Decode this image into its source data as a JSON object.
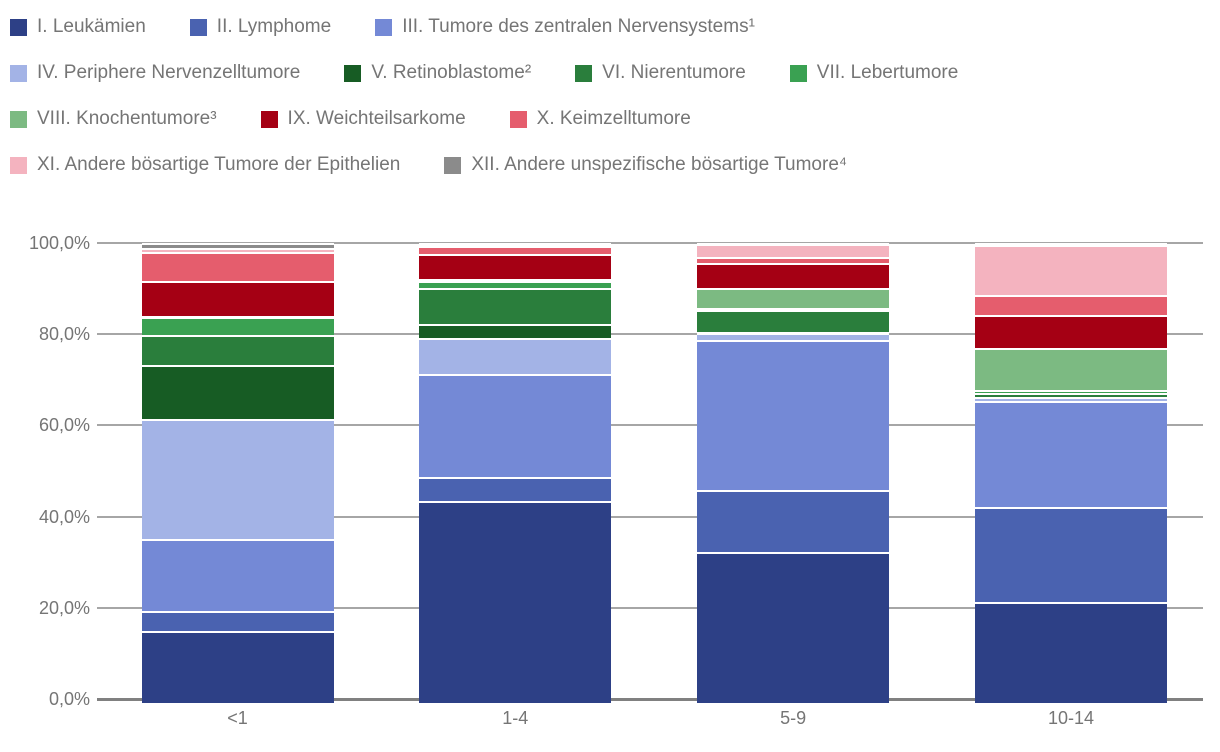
{
  "chart_data": {
    "type": "bar",
    "variant": "stacked-100-percent-column",
    "title": "",
    "xlabel": "",
    "ylabel": "",
    "categories": [
      "<1",
      "1-4",
      "5-9",
      "10-14"
    ],
    "series": [
      {
        "name": "I. Leukämien",
        "color": "#2d4086",
        "values": [
          15.0,
          43.5,
          32.2,
          21.2
        ]
      },
      {
        "name": "II. Lymphome",
        "color": "#4a62b0",
        "values": [
          4.2,
          5.2,
          13.7,
          20.8
        ]
      },
      {
        "name": "III. Tumore des zentralen Nervensystems¹",
        "color": "#7489d6",
        "values": [
          15.9,
          22.5,
          32.8,
          23.3
        ]
      },
      {
        "name": "IV. Periphere Nervenzelltumore",
        "color": "#a3b3e6",
        "values": [
          26.3,
          8.0,
          1.6,
          0.9
        ]
      },
      {
        "name": "V. Retinoblastome²",
        "color": "#175c24",
        "values": [
          11.8,
          3.0,
          0.1,
          0.1
        ]
      },
      {
        "name": "VI. Nierentumore",
        "color": "#2a7e3c",
        "values": [
          6.6,
          8.0,
          4.9,
          0.8
        ]
      },
      {
        "name": "VII. Lebertumore",
        "color": "#3aa152",
        "values": [
          4.0,
          1.5,
          0.5,
          0.6
        ]
      },
      {
        "name": "VIII. Knochentumore³",
        "color": "#7cba82",
        "values": [
          0.2,
          0.4,
          4.4,
          9.2
        ]
      },
      {
        "name": "IX. Weichteilsarkome",
        "color": "#a50014",
        "values": [
          7.6,
          5.5,
          5.5,
          7.3
        ]
      },
      {
        "name": "X. Keimzelltumore",
        "color": "#e55d6d",
        "values": [
          6.5,
          1.8,
          1.3,
          4.5
        ]
      },
      {
        "name": "XI. Andere bösartige Tumore der Epithelien",
        "color": "#f4b3bf",
        "values": [
          0.9,
          0.3,
          2.8,
          10.9
        ]
      },
      {
        "name": "XII. Andere unspezifische bösartige Tumore⁴",
        "color": "#8b8b8b",
        "values": [
          1.0,
          0.3,
          0.2,
          0.4
        ]
      }
    ],
    "y_ticks": [
      {
        "label": "0,0%",
        "value": 0
      },
      {
        "label": "20,0%",
        "value": 20
      },
      {
        "label": "40,0%",
        "value": 40
      },
      {
        "label": "60,0%",
        "value": 60
      },
      {
        "label": "80,0%",
        "value": 80
      },
      {
        "label": "100,0%",
        "value": 100
      }
    ],
    "ylim": [
      0,
      100
    ],
    "grid": true,
    "legend_position": "top",
    "legend_rows": [
      [
        0,
        1,
        2
      ],
      [
        3,
        4,
        5,
        6
      ],
      [
        7,
        8,
        9
      ],
      [
        10,
        11
      ]
    ]
  },
  "style_colors": {
    "text": "#757575",
    "gridline": "#a6a6a6",
    "baseline": "#808080",
    "separator": "#ffffff",
    "background": "#ffffff"
  }
}
